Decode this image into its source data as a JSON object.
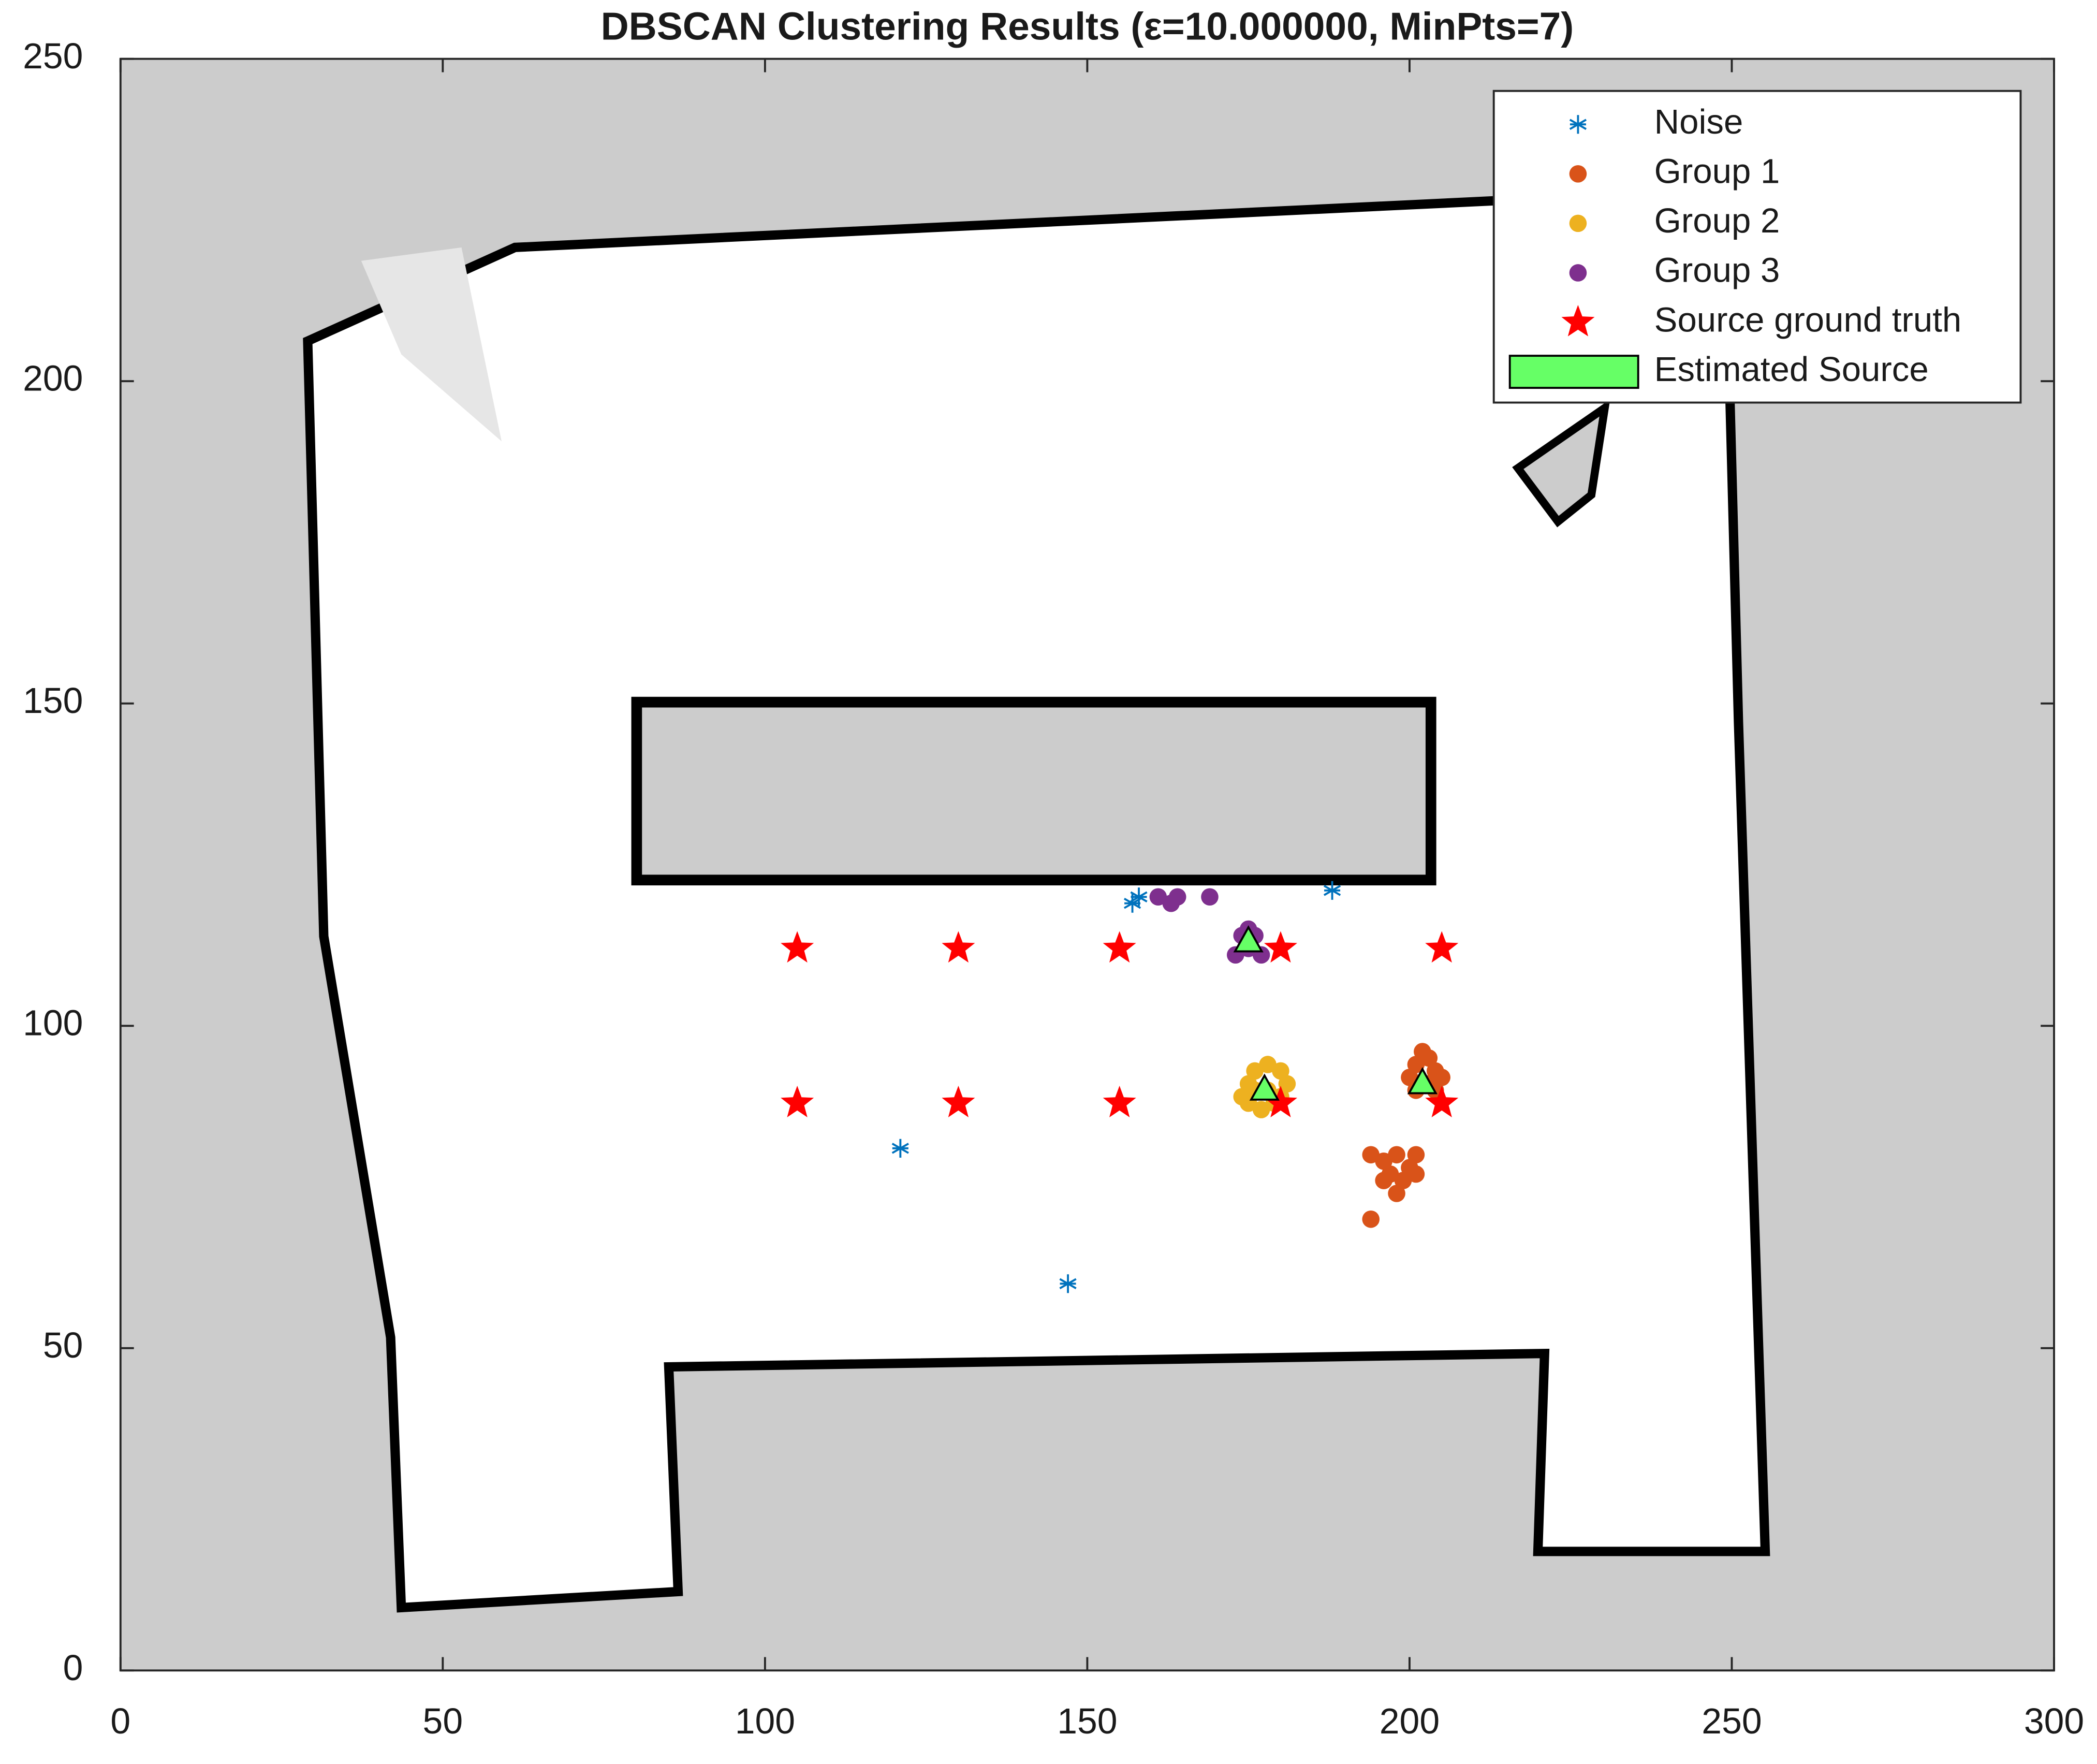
{
  "chart_data": {
    "type": "scatter",
    "title": "DBSCAN Clustering Results (ε=10.000000, MinPts=7)",
    "xlim": [
      0,
      300
    ],
    "ylim": [
      0,
      250
    ],
    "xticks": [
      0,
      50,
      100,
      150,
      200,
      250,
      300
    ],
    "yticks": [
      0,
      50,
      100,
      150,
      200,
      250
    ],
    "legend": "northeast",
    "series": [
      {
        "name": "Noise",
        "color": "#0072BD",
        "marker": "asterisk",
        "x": [
          157,
          158,
          188,
          121,
          147
        ],
        "y": [
          119,
          120,
          121,
          81,
          60
        ]
      },
      {
        "name": "Group 1",
        "color": "#D95319",
        "marker": "circle",
        "x": [
          201,
          202,
          203,
          204,
          200,
          203,
          205,
          201,
          204,
          194,
          196,
          198,
          200,
          201,
          197,
          199,
          201,
          198,
          196,
          194
        ],
        "y": [
          94,
          96,
          95,
          93,
          92,
          91,
          92,
          90,
          90,
          80,
          79,
          80,
          78,
          80,
          77,
          76,
          77,
          74,
          76,
          70
        ]
      },
      {
        "name": "Group 2",
        "color": "#EDB120",
        "marker": "circle",
        "x": [
          174,
          175,
          176,
          178,
          180,
          181,
          179,
          177,
          176,
          178,
          180,
          175
        ],
        "y": [
          89,
          91,
          93,
          94,
          93,
          91,
          88,
          87,
          90,
          90,
          89,
          88
        ]
      },
      {
        "name": "Group 3",
        "color": "#7E2F8E",
        "marker": "circle",
        "x": [
          161,
          163,
          164,
          169,
          174,
          175,
          176,
          173,
          177,
          175
        ],
        "y": [
          120,
          119,
          120,
          120,
          114,
          115,
          114,
          111,
          111,
          112
        ]
      },
      {
        "name": "Source ground truth",
        "color": "#FF0000",
        "marker": "star",
        "x": [
          105,
          130,
          155,
          180,
          205,
          105,
          130,
          155,
          180,
          205
        ],
        "y": [
          112,
          112,
          112,
          112,
          112,
          88,
          88,
          88,
          88,
          88
        ]
      },
      {
        "name": "Estimated Source",
        "color": "#66FF66",
        "marker": "triangle",
        "x": [
          175,
          177.5,
          202
        ],
        "y": [
          113,
          90,
          91
        ]
      }
    ]
  }
}
